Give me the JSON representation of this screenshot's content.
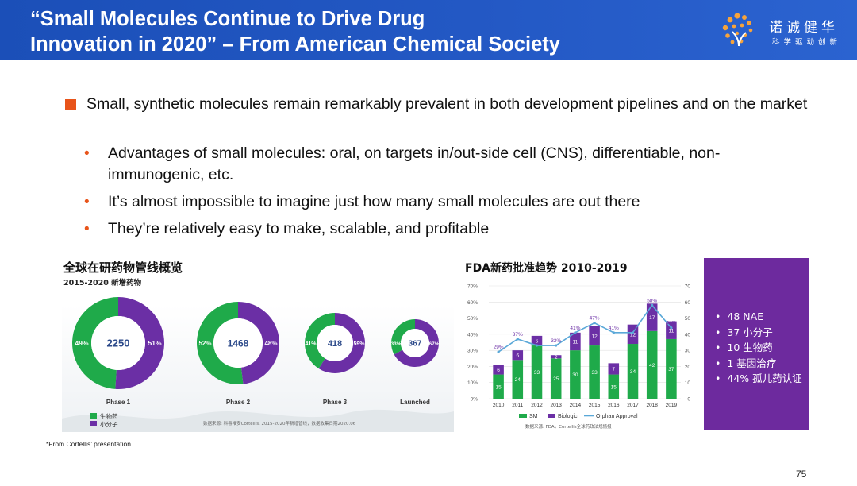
{
  "header": {
    "title_line1": "“Small Molecules Continue to Drive Drug",
    "title_line2": "Innovation in 2020” – From American Chemical Society",
    "logo_cn": "诺诚健华",
    "logo_sub": "科学驱动创新"
  },
  "bullets": {
    "main": "Small, synthetic molecules remain remarkably prevalent in both development pipelines and on the market",
    "sub": [
      "Advantages of small molecules: oral, on targets in/out-side cell (CNS), differentiable, non-immunogenic, etc.",
      "It’s almost impossible to imagine just how many small molecules are out there",
      "They’re relatively easy to make, scalable, and profitable"
    ]
  },
  "pipeline_chart": {
    "title": "全球在研药物管线概览",
    "subtitle": "2015-2020 新增药物",
    "source": "数据来源: 科睿唯安Cortellis, 2015-2020年新增管线，数据收集日期2020.06",
    "legend": [
      "生物药",
      "小分子"
    ],
    "colors": {
      "bio": "#1faa4a",
      "sm": "#6b2fa5"
    },
    "chart_data": {
      "type": "pie",
      "donuts": [
        {
          "label": "Phase 1",
          "total": "2250",
          "bio_pct": 49,
          "sm_pct": 51
        },
        {
          "label": "Phase 2",
          "total": "1468",
          "bio_pct": 52,
          "sm_pct": 48
        },
        {
          "label": "Phase 3",
          "total": "418",
          "bio_pct": 41,
          "sm_pct": 59
        },
        {
          "label": "Launched",
          "total": "367",
          "bio_pct": 33,
          "sm_pct": 67
        }
      ]
    }
  },
  "fda_chart": {
    "title": "FDA新药批准趋势 2010-2019",
    "source": "数据来源: FDA，Cortellis全球药政法规情报",
    "chart_data": {
      "type": "bar",
      "categories": [
        "2010",
        "2011",
        "2012",
        "2013",
        "2014",
        "2015",
        "2016",
        "2017",
        "2018",
        "2019"
      ],
      "series": [
        {
          "name": "SM",
          "values": [
            15,
            24,
            33,
            25,
            30,
            33,
            15,
            34,
            42,
            37
          ]
        },
        {
          "name": "Biologic",
          "values": [
            6,
            6,
            6,
            2,
            11,
            12,
            7,
            12,
            17,
            11
          ]
        },
        {
          "name": "Orphan Approval",
          "values": [
            29,
            37,
            33,
            33,
            41,
            47,
            41,
            41,
            58,
            44
          ]
        }
      ],
      "orphan_labels": [
        "29%",
        "37%",
        "33%",
        "33%",
        "41%",
        "47%",
        "41%",
        "41%",
        "58%",
        "44%"
      ],
      "left_ticks": [
        "0%",
        "10%",
        "20%",
        "30%",
        "40%",
        "50%",
        "60%",
        "70%"
      ],
      "right_ticks": [
        "0",
        "10",
        "20",
        "30",
        "40",
        "50",
        "60",
        "70"
      ],
      "ylim": [
        0,
        70
      ],
      "colors": {
        "SM": "#1faa4a",
        "Biologic": "#6b2fa5",
        "Orphan Approval": "#5aa8d8"
      }
    }
  },
  "sidebox": {
    "items": [
      "48 NAE",
      "37 小分子",
      "10 生物药",
      "1 基因治疗",
      "44% 孤儿药认证"
    ]
  },
  "footnote": "*From Cortellis’ presentation",
  "page_number": "75"
}
